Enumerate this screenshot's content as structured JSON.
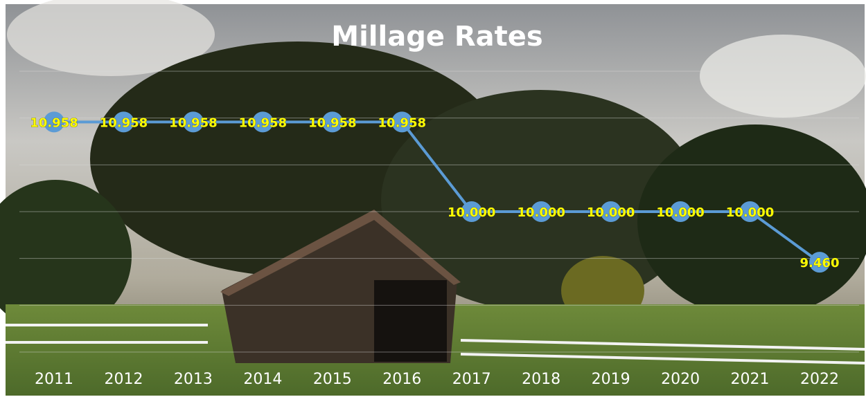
{
  "chart_data": {
    "type": "line",
    "title": "Millage Rates",
    "categories": [
      "2011",
      "2012",
      "2013",
      "2014",
      "2015",
      "2016",
      "2017",
      "2018",
      "2019",
      "2020",
      "2021",
      "2022"
    ],
    "values": [
      10.958,
      10.958,
      10.958,
      10.958,
      10.958,
      10.958,
      10,
      10,
      10,
      10,
      10,
      9.46
    ],
    "value_labels": [
      "10.958",
      "10.958",
      "10.958",
      "10.958",
      "10.958",
      "10.958",
      "10.000",
      "10.000",
      "10.000",
      "10.000",
      "10.000",
      "9.460"
    ],
    "color": "#5b9bd5",
    "ylim": [
      8.5,
      11.5
    ],
    "yticks": [
      8.5,
      9,
      9.5,
      10,
      10.5,
      11,
      11.5
    ],
    "grid": true
  }
}
